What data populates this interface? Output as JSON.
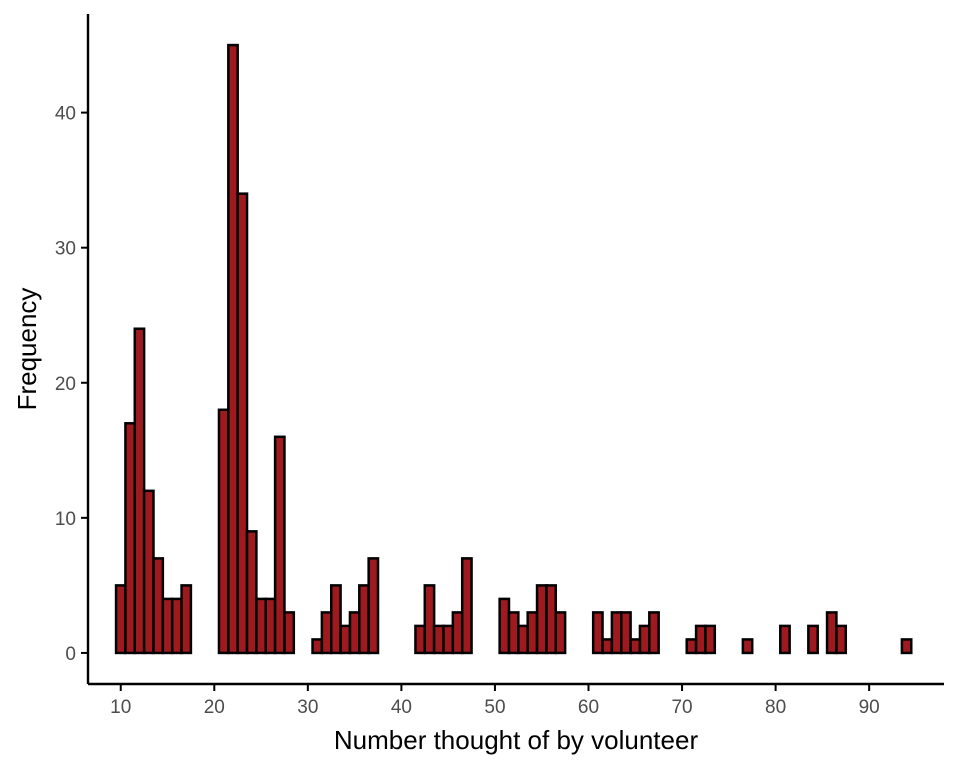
{
  "chart_data": {
    "type": "bar",
    "xlabel": "Number thought of by volunteer",
    "ylabel": "Frequency",
    "bin_width": 1,
    "x": [
      10,
      11,
      12,
      13,
      14,
      15,
      16,
      17,
      18,
      19,
      20,
      21,
      22,
      23,
      24,
      25,
      26,
      27,
      28,
      29,
      30,
      31,
      32,
      33,
      34,
      35,
      36,
      37,
      38,
      39,
      40,
      41,
      42,
      43,
      44,
      45,
      46,
      47,
      48,
      49,
      50,
      51,
      52,
      53,
      54,
      55,
      56,
      57,
      58,
      59,
      60,
      61,
      62,
      63,
      64,
      65,
      66,
      67,
      68,
      69,
      70,
      71,
      72,
      73,
      74,
      75,
      76,
      77,
      78,
      79,
      80,
      81,
      82,
      83,
      84,
      85,
      86,
      87,
      88,
      89,
      90,
      91,
      92,
      93,
      94,
      95
    ],
    "values": [
      5,
      17,
      24,
      12,
      7,
      4,
      4,
      5,
      0,
      0,
      0,
      18,
      45,
      34,
      9,
      4,
      4,
      16,
      3,
      0,
      0,
      1,
      3,
      5,
      2,
      3,
      5,
      7,
      0,
      0,
      0,
      0,
      2,
      5,
      2,
      2,
      3,
      7,
      0,
      0,
      0,
      4,
      3,
      2,
      3,
      5,
      5,
      3,
      0,
      0,
      0,
      3,
      1,
      3,
      3,
      1,
      2,
      3,
      0,
      0,
      0,
      1,
      2,
      2,
      0,
      0,
      0,
      1,
      0,
      0,
      0,
      2,
      0,
      0,
      2,
      0,
      3,
      2,
      0,
      0,
      0,
      0,
      0,
      0,
      1,
      0
    ],
    "xlim": [
      6.5,
      98
    ],
    "ylim": [
      -2.3,
      47.3
    ],
    "x_ticks": [
      10,
      20,
      30,
      40,
      50,
      60,
      70,
      80,
      90
    ],
    "y_ticks": [
      0,
      10,
      20,
      30,
      40
    ],
    "grid": false,
    "bar_color": "#9E1A1F",
    "edge_color": "#000000"
  }
}
